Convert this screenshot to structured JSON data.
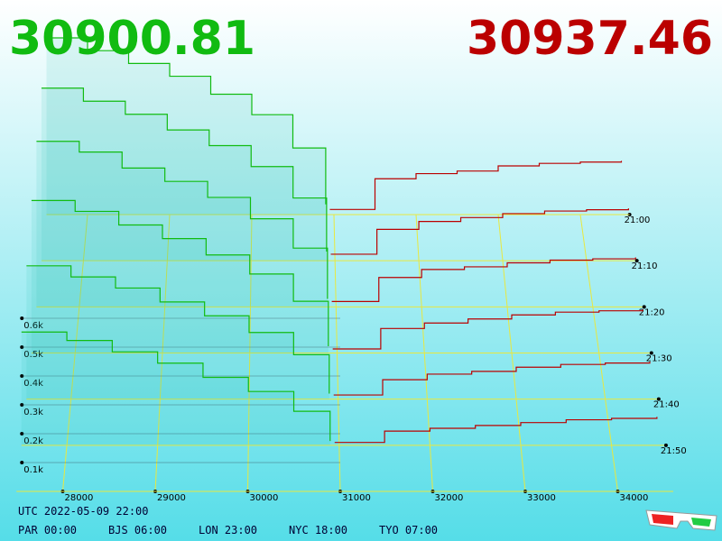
{
  "chart_data": {
    "type": "depth3d",
    "bid_label": "30900.81",
    "ask_label": "30937.46",
    "bid_color": "#11bb11",
    "ask_color": "#bb0000",
    "xlim": [
      27500,
      34600
    ],
    "xticks": [
      28000,
      29000,
      30000,
      31000,
      32000,
      33000,
      34000
    ],
    "ylim": [
      0,
      700
    ],
    "yticks": [
      {
        "value": 100,
        "label": "0.1k"
      },
      {
        "value": 200,
        "label": "0.2k"
      },
      {
        "value": 300,
        "label": "0.3k"
      },
      {
        "value": 400,
        "label": "0.4k"
      },
      {
        "value": 500,
        "label": "0.5k"
      },
      {
        "value": 600,
        "label": "0.6k"
      }
    ],
    "bid_prices": [
      27500,
      28000,
      28500,
      29000,
      29500,
      30000,
      30500,
      30900
    ],
    "ask_prices": [
      30950,
      31500,
      32000,
      32500,
      33000,
      33500,
      34000,
      34500
    ],
    "snapshots": [
      {
        "time": "21:00",
        "bids": [
          690,
          640,
          590,
          540,
          470,
          390,
          260,
          40
        ],
        "asks": [
          20,
          140,
          160,
          170,
          190,
          200,
          205,
          210
        ]
      },
      {
        "time": "21:10",
        "bids": [
          660,
          610,
          560,
          500,
          440,
          360,
          240,
          35
        ],
        "asks": [
          25,
          120,
          150,
          165,
          180,
          190,
          195,
          200
        ]
      },
      {
        "time": "21:20",
        "bids": [
          620,
          580,
          520,
          470,
          410,
          330,
          220,
          30
        ],
        "asks": [
          20,
          110,
          140,
          150,
          165,
          175,
          180,
          185
        ]
      },
      {
        "time": "21:30",
        "bids": [
          560,
          520,
          470,
          420,
          360,
          290,
          190,
          25
        ],
        "asks": [
          15,
          90,
          110,
          125,
          140,
          150,
          155,
          160
        ]
      },
      {
        "time": "21:40",
        "bids": [
          480,
          440,
          400,
          350,
          300,
          240,
          160,
          20
        ],
        "asks": [
          15,
          70,
          90,
          100,
          115,
          125,
          130,
          135
        ]
      },
      {
        "time": "21:50",
        "bids": [
          400,
          370,
          330,
          290,
          240,
          190,
          120,
          15
        ],
        "asks": [
          10,
          50,
          60,
          70,
          80,
          90,
          95,
          100
        ]
      }
    ],
    "footer_time": "UTC 2022-05-09 22:00",
    "clocks": [
      "PAR 00:00",
      "BJS 06:00",
      "LON 23:00",
      "NYC 18:00",
      "TYO 07:00"
    ]
  }
}
